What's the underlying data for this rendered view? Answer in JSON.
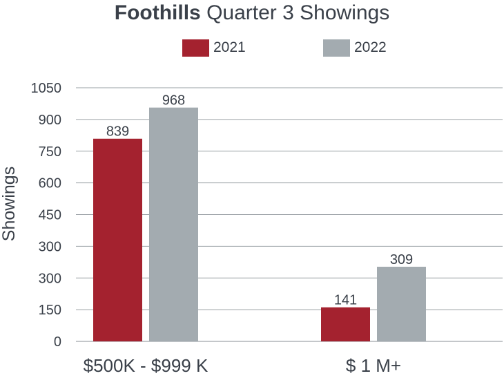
{
  "title": {
    "bold": "Foothills",
    "rest": " Quarter 3 Showings"
  },
  "colors": {
    "2021": "#a4222f",
    "2022": "#a3abb0"
  },
  "chart_data": {
    "type": "bar",
    "title": "Foothills Quarter 3 Showings",
    "xlabel": "",
    "ylabel": "Showings",
    "categories": [
      "$500K - $999 K",
      "$ 1 M+"
    ],
    "series": [
      {
        "name": "2021",
        "values": [
          839,
          141
        ],
        "data_labels": [
          "839",
          "141"
        ]
      },
      {
        "name": "2022",
        "values": [
          968,
          309
        ],
        "data_labels": [
          "968",
          "309"
        ]
      }
    ],
    "y_tick_labels": [
      "0",
      "150",
      "300",
      "300",
      "450",
      "600",
      "750",
      "900",
      "1050"
    ],
    "ylim": [
      0,
      1050
    ],
    "grid": true,
    "legend": "top-center"
  }
}
